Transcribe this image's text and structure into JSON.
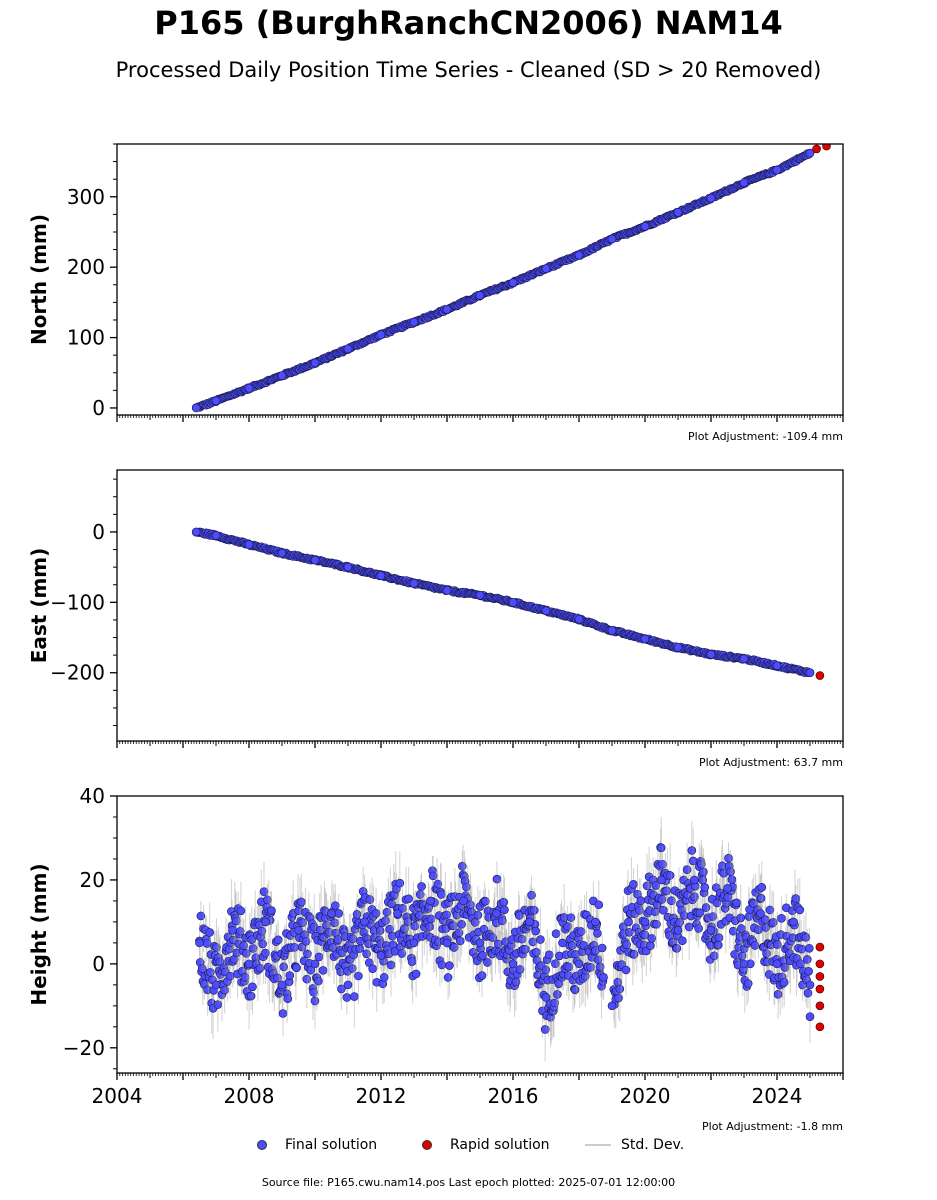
{
  "title": "P165 (BurghRanchCN2006) NAM14",
  "subtitle": "Processed Daily Position Time Series - Cleaned (SD > 20 Removed)",
  "legend": {
    "final": "Final solution",
    "rapid": "Rapid solution",
    "std": "Std. Dev."
  },
  "footer": "Source file: P165.cwu.nam14.pos  Last epoch plotted: 2025-07-01 12:00:00",
  "colors": {
    "final": "#4d4dff",
    "rapid": "#e00000",
    "std": "#999999"
  },
  "chart_data": [
    {
      "type": "scatter",
      "ylabel": "North (mm)",
      "adjustment": "Plot Adjustment: -109.4 mm",
      "xlim": [
        2004,
        2026
      ],
      "ylim": [
        -10,
        375
      ],
      "yticks": [
        0,
        100,
        200,
        300
      ],
      "ytick_labels": [
        "0",
        "100",
        "200",
        "300"
      ],
      "xtick_labels": [],
      "series": [
        {
          "name": "Final solution",
          "x": [
            2006.4,
            2007.0,
            2008.0,
            2009.0,
            2010.0,
            2011.0,
            2012.0,
            2013.0,
            2014.0,
            2015.0,
            2016.0,
            2017.0,
            2018.0,
            2019.0,
            2020.0,
            2021.0,
            2022.0,
            2023.0,
            2024.0,
            2025.0
          ],
          "y": [
            0,
            10,
            28,
            46,
            64,
            84,
            104,
            122,
            140,
            160,
            178,
            198,
            217,
            240,
            258,
            278,
            298,
            320,
            338,
            362
          ]
        },
        {
          "name": "Rapid solution",
          "x": [
            2025.2,
            2025.5
          ],
          "y": [
            368,
            372
          ]
        }
      ]
    },
    {
      "type": "scatter",
      "ylabel": "East (mm)",
      "adjustment": "Plot Adjustment: 63.7 mm",
      "xlim": [
        2004,
        2026
      ],
      "ylim": [
        -297,
        88
      ],
      "yticks": [
        0,
        -100,
        -200
      ],
      "ytick_labels": [
        "0",
        "−100",
        "−200"
      ],
      "xtick_labels": [],
      "series": [
        {
          "name": "Final solution",
          "x": [
            2006.4,
            2007.0,
            2008.0,
            2009.0,
            2010.0,
            2011.0,
            2012.0,
            2013.0,
            2014.0,
            2015.0,
            2016.0,
            2017.0,
            2018.0,
            2019.0,
            2020.0,
            2021.0,
            2022.0,
            2023.0,
            2024.0,
            2025.0
          ],
          "y": [
            0,
            -5,
            -18,
            -30,
            -40,
            -50,
            -62,
            -73,
            -83,
            -90,
            -100,
            -112,
            -124,
            -140,
            -152,
            -164,
            -174,
            -180,
            -190,
            -200
          ]
        },
        {
          "name": "Rapid solution",
          "x": [
            2025.3
          ],
          "y": [
            -204
          ]
        }
      ]
    },
    {
      "type": "scatter",
      "ylabel": "Height (mm)",
      "adjustment": "Plot Adjustment: -1.8 mm",
      "xlim": [
        2004,
        2026
      ],
      "ylim": [
        -26,
        40
      ],
      "yticks": [
        -20,
        0,
        20,
        40
      ],
      "ytick_labels": [
        "−20",
        "0",
        "20",
        "40"
      ],
      "xtick_labels": [
        "2004",
        "2008",
        "2012",
        "2016",
        "2020",
        "2024"
      ],
      "xtick_values": [
        2004,
        2008,
        2012,
        2016,
        2020,
        2024
      ],
      "series": [
        {
          "name": "Final solution",
          "x": [
            2006.5,
            2007.0,
            2007.5,
            2008.0,
            2008.5,
            2009.0,
            2009.5,
            2010.0,
            2010.5,
            2011.0,
            2011.5,
            2012.0,
            2012.5,
            2013.0,
            2013.5,
            2014.0,
            2014.5,
            2015.0,
            2015.5,
            2016.0,
            2016.5,
            2017.0,
            2017.5,
            2018.0,
            2018.5,
            2019.0,
            2019.5,
            2020.0,
            2020.5,
            2021.0,
            2021.5,
            2022.0,
            2022.5,
            2023.0,
            2023.5,
            2024.0,
            2024.5,
            2025.0
          ],
          "y": [
            5,
            -5,
            8,
            0,
            10,
            -5,
            8,
            0,
            12,
            -5,
            10,
            2,
            12,
            5,
            15,
            5,
            15,
            5,
            12,
            0,
            10,
            -8,
            5,
            0,
            10,
            -10,
            10,
            10,
            20,
            8,
            20,
            8,
            18,
            0,
            12,
            0,
            10,
            -5
          ]
        },
        {
          "name": "Rapid solution",
          "x": [
            2025.3,
            2025.3,
            2025.3,
            2025.3,
            2025.3,
            2025.3
          ],
          "y": [
            4,
            0,
            -3,
            -6,
            -10,
            -15
          ]
        }
      ]
    }
  ]
}
